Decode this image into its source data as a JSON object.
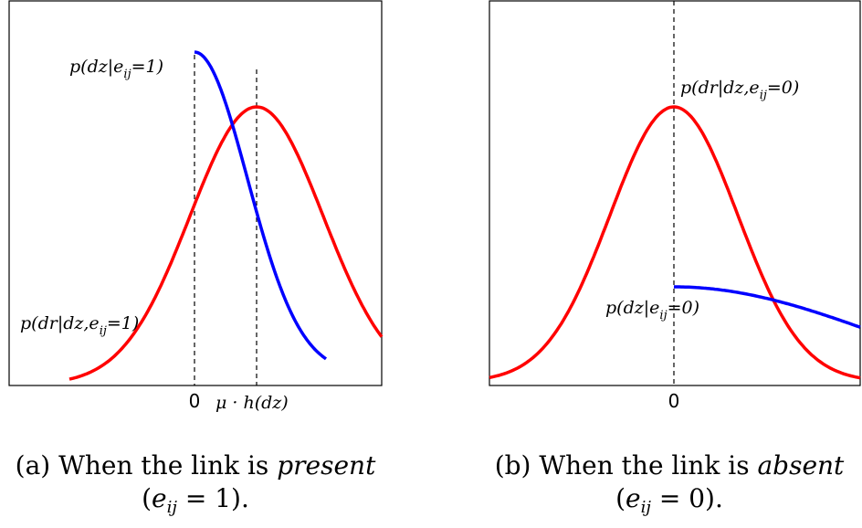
{
  "chart_data": [
    {
      "type": "line",
      "title": "",
      "xlabel": "",
      "ylabel": "",
      "tick_labels": {
        "zero": "0",
        "mu": "μ · h(dz)"
      },
      "series": [
        {
          "label": "p(dz|e_ij = 1)",
          "color": "#0000ff"
        },
        {
          "label": "p(dr|dz,e_ij = 1)",
          "color": "#ff0000"
        }
      ],
      "annotations": [
        {
          "main": "p(dz|e",
          "sub": "ij",
          "rest": "=1)"
        },
        {
          "main": "p(dr|dz,e",
          "sub": "ij",
          "rest": "=1)"
        }
      ],
      "caption": {
        "prefix": "(a) When the link is ",
        "emph": "present",
        "line2_pre": "(",
        "var": "e",
        "sub": "ij",
        "line2_post": " = 1)."
      }
    },
    {
      "type": "line",
      "title": "",
      "xlabel": "",
      "ylabel": "",
      "tick_labels": {
        "zero": "0"
      },
      "series": [
        {
          "label": "p(dr|dz,e_ij = 0)",
          "color": "#ff0000"
        },
        {
          "label": "p(dz|e_ij = 0)",
          "color": "#0000ff"
        }
      ],
      "annotations": [
        {
          "main": "p(dr|dz,e",
          "sub": "ij",
          "rest": "=0)"
        },
        {
          "main": "p(dz|e",
          "sub": "ij",
          "rest": "=0)"
        }
      ],
      "caption": {
        "prefix": "(b) When the link is ",
        "emph": "absent",
        "line2_pre": "(",
        "var": "e",
        "sub": "ij",
        "line2_post": " = 0)."
      }
    }
  ]
}
